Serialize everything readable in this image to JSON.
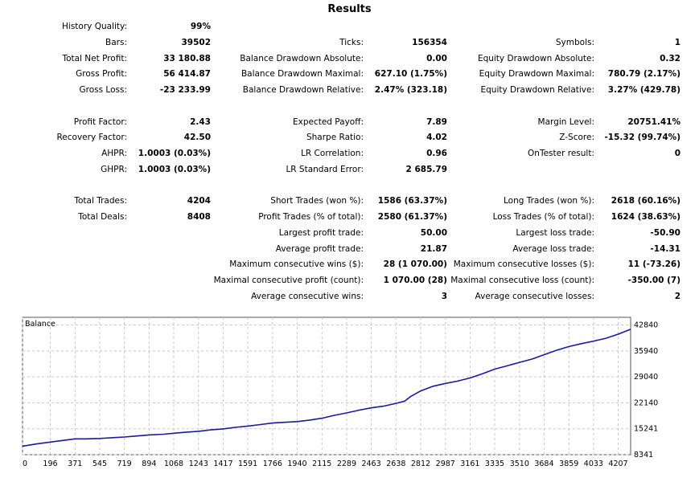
{
  "title": "Results",
  "stats": [
    [
      {
        "label": "History Quality:",
        "value": "99%"
      },
      {
        "label": "Bars:",
        "value": "39502"
      },
      {
        "label": "Total Net Profit:",
        "value": "33 180.88"
      },
      {
        "label": "Gross Profit:",
        "value": "56 414.87"
      },
      {
        "label": "Gross Loss:",
        "value": "-23 233.99"
      },
      null,
      {
        "label": "Profit Factor:",
        "value": "2.43"
      },
      {
        "label": "Recovery Factor:",
        "value": "42.50"
      },
      {
        "label": "AHPR:",
        "value": "1.0003 (0.03%)"
      },
      {
        "label": "GHPR:",
        "value": "1.0003 (0.03%)"
      },
      null,
      {
        "label": "Total Trades:",
        "value": "4204"
      },
      {
        "label": "Total Deals:",
        "value": "8408"
      }
    ],
    [
      null,
      {
        "label": "Ticks:",
        "value": "156354"
      },
      {
        "label": "Balance Drawdown Absolute:",
        "value": "0.00"
      },
      {
        "label": "Balance Drawdown Maximal:",
        "value": "627.10 (1.75%)"
      },
      {
        "label": "Balance Drawdown Relative:",
        "value": "2.47% (323.18)"
      },
      null,
      {
        "label": "Expected Payoff:",
        "value": "7.89"
      },
      {
        "label": "Sharpe Ratio:",
        "value": "4.02"
      },
      {
        "label": "LR Correlation:",
        "value": "0.96"
      },
      {
        "label": "LR Standard Error:",
        "value": "2 685.79"
      },
      null,
      {
        "label": "Short Trades (won %):",
        "value": "1586 (63.37%)"
      },
      {
        "label": "Profit Trades (% of total):",
        "value": "2580 (61.37%)"
      },
      {
        "label": "Largest profit trade:",
        "value": "50.00"
      },
      {
        "label": "Average profit trade:",
        "value": "21.87"
      },
      {
        "label": "Maximum consecutive wins ($):",
        "value": "28 (1 070.00)"
      },
      {
        "label": "Maximal consecutive profit (count):",
        "value": "1 070.00 (28)"
      },
      {
        "label": "Average consecutive wins:",
        "value": "3"
      }
    ],
    [
      null,
      {
        "label": "Symbols:",
        "value": "1"
      },
      {
        "label": "Equity Drawdown Absolute:",
        "value": "0.32"
      },
      {
        "label": "Equity Drawdown Maximal:",
        "value": "780.79 (2.17%)"
      },
      {
        "label": "Equity Drawdown Relative:",
        "value": "3.27% (429.78)"
      },
      null,
      {
        "label": "Margin Level:",
        "value": "20751.41%"
      },
      {
        "label": "Z-Score:",
        "value": "-15.32 (99.74%)"
      },
      {
        "label": "OnTester result:",
        "value": "0"
      },
      null,
      null,
      {
        "label": "Long Trades (won %):",
        "value": "2618 (60.16%)"
      },
      {
        "label": "Loss Trades (% of total):",
        "value": "1624 (38.63%)"
      },
      {
        "label": "Largest loss trade:",
        "value": "-50.90"
      },
      {
        "label": "Average loss trade:",
        "value": "-14.31"
      },
      {
        "label": "Maximum consecutive losses ($):",
        "value": "11 (-73.26)"
      },
      {
        "label": "Maximal consecutive loss (count):",
        "value": "-350.00 (7)"
      },
      {
        "label": "Average consecutive losses:",
        "value": "2"
      }
    ]
  ],
  "chart_data": {
    "type": "line",
    "title": "Balance",
    "grid": true,
    "x_ticks": [
      0,
      196,
      371,
      545,
      719,
      894,
      1068,
      1243,
      1417,
      1591,
      1766,
      1940,
      2115,
      2289,
      2463,
      2638,
      2812,
      2987,
      3161,
      3335,
      3510,
      3684,
      3859,
      4033,
      4207
    ],
    "y_ticks": [
      8341,
      15241,
      22140,
      29040,
      35940,
      42840
    ],
    "xlim": [
      0,
      4295
    ],
    "ylim": [
      8341,
      44880
    ],
    "series_color": "#1a1aa0",
    "series": [
      {
        "x": [
          0,
          100,
          196,
          300,
          371,
          450,
          545,
          650,
          719,
          800,
          894,
          1000,
          1068,
          1150,
          1243,
          1330,
          1417,
          1500,
          1591,
          1680,
          1766,
          1850,
          1940,
          2030,
          2115,
          2200,
          2289,
          2380,
          2463,
          2550,
          2638,
          2700,
          2740,
          2812,
          2900,
          2987,
          3070,
          3161,
          3250,
          3335,
          3420,
          3510,
          3600,
          3684,
          3770,
          3859,
          3950,
          4033,
          4120,
          4207,
          4295
        ],
        "y": [
          10600,
          11200,
          11700,
          12200,
          12550,
          12550,
          12650,
          12900,
          13050,
          13300,
          13600,
          13800,
          14050,
          14300,
          14550,
          14950,
          15200,
          15600,
          15950,
          16350,
          16750,
          16950,
          17150,
          17550,
          18050,
          18800,
          19450,
          20200,
          20800,
          21250,
          22000,
          22600,
          23800,
          25300,
          26550,
          27300,
          27900,
          28750,
          29900,
          31100,
          31950,
          32900,
          33800,
          34950,
          36100,
          37100,
          37900,
          38550,
          39300,
          40400,
          41700
        ]
      }
    ]
  }
}
